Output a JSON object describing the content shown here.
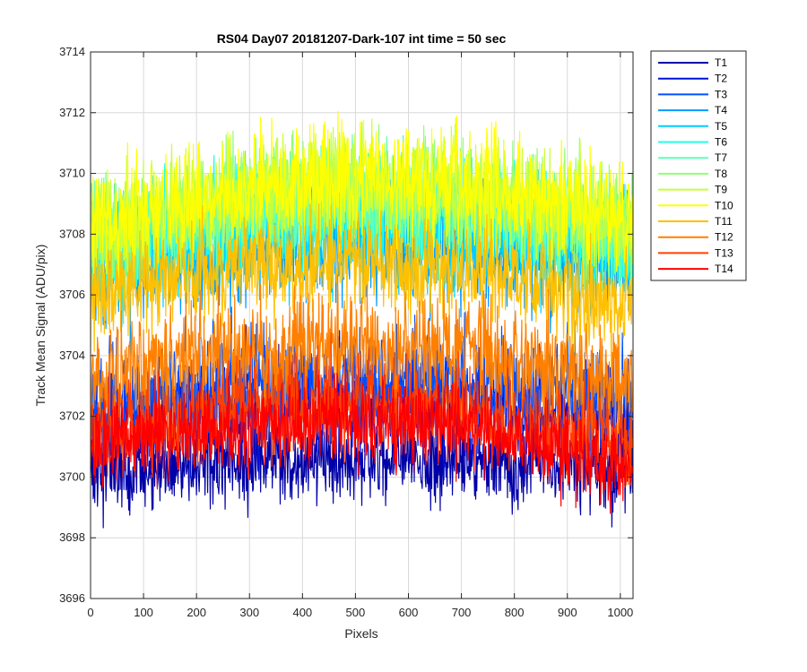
{
  "chart_data": {
    "type": "line",
    "title": "RS04 Day07 20181207-Dark-107 int time = 50 sec",
    "xlabel": "Pixels",
    "ylabel": "Track Mean Signal (ADU/pix)",
    "xlim": [
      0,
      1024
    ],
    "ylim": [
      3696,
      3714
    ],
    "x_ticks": [
      0,
      100,
      200,
      300,
      400,
      500,
      600,
      700,
      800,
      900,
      1000
    ],
    "y_ticks": [
      3696,
      3698,
      3700,
      3702,
      3704,
      3706,
      3708,
      3710,
      3712,
      3714
    ],
    "grid": true,
    "legend_position": "outside-top-right",
    "x_start": 0,
    "x_end": 1023,
    "series": [
      {
        "name": "T1",
        "color": "#0000a8",
        "center": 3700.6,
        "center_left": 3700.2,
        "center_right": 3700.3,
        "amplitude": 1.4
      },
      {
        "name": "T2",
        "color": "#0010d8",
        "center": 3702.5,
        "center_left": 3701.8,
        "center_right": 3701.9,
        "amplitude": 1.8
      },
      {
        "name": "T3",
        "color": "#0050ff",
        "center": 3703.2,
        "center_left": 3702.4,
        "center_right": 3702.6,
        "amplitude": 1.8
      },
      {
        "name": "T4",
        "color": "#0098ff",
        "center": 3707.6,
        "center_left": 3706.6,
        "center_right": 3706.8,
        "amplitude": 1.8
      },
      {
        "name": "T5",
        "color": "#00d0ff",
        "center": 3708.2,
        "center_left": 3707.0,
        "center_right": 3707.3,
        "amplitude": 1.8
      },
      {
        "name": "T6",
        "color": "#20ffe8",
        "center": 3708.8,
        "center_left": 3707.4,
        "center_right": 3707.6,
        "amplitude": 1.8
      },
      {
        "name": "T7",
        "color": "#60ffb8",
        "center": 3709.0,
        "center_left": 3707.5,
        "center_right": 3707.7,
        "amplitude": 1.8
      },
      {
        "name": "T8",
        "color": "#90ff78",
        "center": 3709.4,
        "center_left": 3707.8,
        "center_right": 3708.0,
        "amplitude": 1.8
      },
      {
        "name": "T9",
        "color": "#c8ff38",
        "center": 3709.6,
        "center_left": 3708.0,
        "center_right": 3708.2,
        "amplitude": 1.8
      },
      {
        "name": "T10",
        "color": "#ffff00",
        "center": 3709.8,
        "center_left": 3708.2,
        "center_right": 3708.4,
        "amplitude": 1.8
      },
      {
        "name": "T11",
        "color": "#ffc000",
        "center": 3707.0,
        "center_left": 3706.0,
        "center_right": 3705.6,
        "amplitude": 1.6
      },
      {
        "name": "T12",
        "color": "#ff8000",
        "center": 3704.3,
        "center_left": 3703.2,
        "center_right": 3703.0,
        "amplitude": 1.8
      },
      {
        "name": "T13",
        "color": "#ff4000",
        "center": 3702.4,
        "center_left": 3701.5,
        "center_right": 3701.0,
        "amplitude": 1.6
      },
      {
        "name": "T14",
        "color": "#ff0000",
        "center": 3701.8,
        "center_left": 3701.0,
        "center_right": 3700.2,
        "amplitude": 1.4
      }
    ]
  }
}
